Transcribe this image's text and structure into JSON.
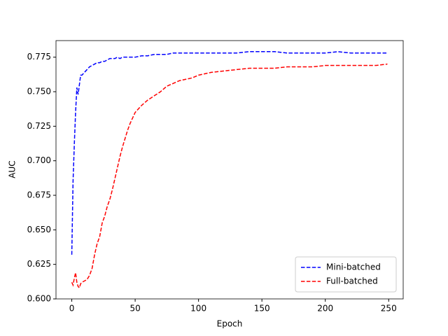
{
  "chart_data": {
    "type": "line",
    "xlabel": "Epoch",
    "ylabel": "AUC",
    "x": [
      0,
      1,
      2,
      3,
      4,
      5,
      6,
      7,
      8,
      10,
      12,
      14,
      16,
      18,
      20,
      22,
      24,
      26,
      28,
      30,
      32,
      34,
      36,
      38,
      40,
      42,
      44,
      46,
      48,
      50,
      55,
      60,
      65,
      70,
      75,
      80,
      85,
      90,
      95,
      100,
      110,
      120,
      130,
      140,
      150,
      160,
      170,
      180,
      190,
      200,
      210,
      220,
      230,
      240,
      249
    ],
    "series": [
      {
        "name": "Mini-batched",
        "color": "#0000ff",
        "values": [
          0.632,
          0.685,
          0.712,
          0.735,
          0.753,
          0.748,
          0.755,
          0.762,
          0.762,
          0.764,
          0.766,
          0.768,
          0.769,
          0.77,
          0.771,
          0.771,
          0.772,
          0.772,
          0.773,
          0.774,
          0.774,
          0.774,
          0.775,
          0.774,
          0.775,
          0.775,
          0.775,
          0.775,
          0.775,
          0.775,
          0.776,
          0.776,
          0.777,
          0.777,
          0.777,
          0.778,
          0.778,
          0.778,
          0.778,
          0.778,
          0.778,
          0.778,
          0.778,
          0.779,
          0.779,
          0.779,
          0.778,
          0.778,
          0.778,
          0.778,
          0.779,
          0.778,
          0.778,
          0.778,
          0.778
        ]
      },
      {
        "name": "Full-batched",
        "color": "#ff0000",
        "values": [
          0.612,
          0.61,
          0.615,
          0.619,
          0.612,
          0.609,
          0.608,
          0.611,
          0.612,
          0.613,
          0.614,
          0.617,
          0.622,
          0.632,
          0.64,
          0.645,
          0.655,
          0.66,
          0.667,
          0.672,
          0.679,
          0.687,
          0.695,
          0.703,
          0.71,
          0.716,
          0.722,
          0.727,
          0.731,
          0.735,
          0.74,
          0.744,
          0.747,
          0.75,
          0.754,
          0.756,
          0.758,
          0.759,
          0.76,
          0.762,
          0.764,
          0.765,
          0.766,
          0.767,
          0.767,
          0.767,
          0.768,
          0.768,
          0.768,
          0.769,
          0.769,
          0.769,
          0.769,
          0.769,
          0.77
        ]
      }
    ],
    "xlim": [
      -12.45,
      261.45
    ],
    "xticks": [
      0,
      50,
      100,
      150,
      200,
      250
    ],
    "ylim": [
      0.6,
      0.787
    ],
    "yticks": [
      {
        "value": 0.6,
        "label": "0.600"
      },
      0.625,
      {
        "value": 0.65,
        "label": "0.650"
      },
      0.675,
      {
        "value": 0.7,
        "label": "0.700"
      },
      0.725,
      {
        "value": 0.75,
        "label": "0.750"
      },
      0.775
    ],
    "legend": "lower right",
    "dashed": true
  }
}
